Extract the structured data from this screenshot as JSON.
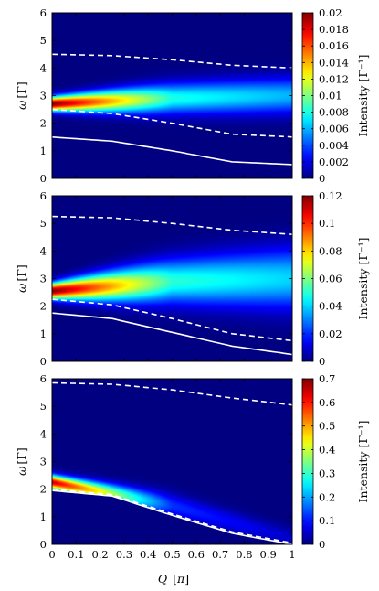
{
  "figure": {
    "xlabel": "Q [π]",
    "xlabel_main": "Q",
    "xlabel_unit": "π"
  },
  "chart_data": [
    {
      "type": "heatmap",
      "xlabel": "Q [π]",
      "ylabel": "ω [Γ]",
      "xlim": [
        0,
        1
      ],
      "ylim": [
        0,
        6
      ],
      "x_ticks": [
        "0",
        "0.1",
        "0.2",
        "0.3",
        "0.4",
        "0.5",
        "0.6",
        "0.7",
        "0.8",
        "0.9",
        "1"
      ],
      "y_ticks": [
        "0",
        "1",
        "2",
        "3",
        "4",
        "5",
        "6"
      ],
      "colorbar": {
        "label": "Intensity [Γ⁻¹]",
        "range": [
          0,
          0.02
        ],
        "ticks": [
          "0",
          "0.002",
          "0.004",
          "0.006",
          "0.008",
          "0.01",
          "0.012",
          "0.014",
          "0.016",
          "0.018",
          "0.02"
        ]
      },
      "colormap": "jet",
      "background_color": "#0000ff",
      "peak_band": {
        "q": [
          0,
          0.5,
          1
        ],
        "center": [
          2.7,
          2.9,
          3.0
        ],
        "width": [
          0.18,
          0.38,
          0.45
        ],
        "intensity": [
          0.02,
          0.008,
          0.006
        ]
      },
      "solid_line": {
        "q": [
          0,
          0.25,
          0.5,
          0.75,
          1
        ],
        "omega": [
          1.5,
          1.35,
          1.0,
          0.6,
          0.5
        ]
      },
      "dashed_lines": [
        {
          "q": [
            0,
            0.25,
            0.5,
            0.75,
            1
          ],
          "omega": [
            4.5,
            4.45,
            4.3,
            4.1,
            4.0
          ]
        },
        {
          "q": [
            0,
            0.25,
            0.5,
            0.75,
            1
          ],
          "omega": [
            2.5,
            2.35,
            2.0,
            1.6,
            1.5
          ]
        }
      ]
    },
    {
      "type": "heatmap",
      "xlabel": "Q [π]",
      "ylabel": "ω [Γ]",
      "xlim": [
        0,
        1
      ],
      "ylim": [
        0,
        6
      ],
      "x_ticks": [
        "0",
        "0.1",
        "0.2",
        "0.3",
        "0.4",
        "0.5",
        "0.6",
        "0.7",
        "0.8",
        "0.9",
        "1"
      ],
      "y_ticks": [
        "0",
        "1",
        "2",
        "3",
        "4",
        "5",
        "6"
      ],
      "colorbar": {
        "label": "Intensity [Γ⁻¹]",
        "range": [
          0,
          0.12
        ],
        "ticks": [
          "0",
          "0.02",
          "0.04",
          "0.06",
          "0.08",
          "0.1",
          "0.12"
        ]
      },
      "colormap": "jet",
      "background_color": "#0000ff",
      "peak_band": {
        "q": [
          0,
          0.5,
          1
        ],
        "center": [
          2.55,
          2.9,
          3.0
        ],
        "width": [
          0.2,
          0.55,
          0.75
        ],
        "intensity": [
          0.12,
          0.05,
          0.04
        ]
      },
      "solid_line": {
        "q": [
          0,
          0.25,
          0.5,
          0.75,
          1
        ],
        "omega": [
          1.75,
          1.55,
          1.05,
          0.55,
          0.25
        ]
      },
      "dashed_lines": [
        {
          "q": [
            0,
            0.25,
            0.5,
            0.75,
            1
          ],
          "omega": [
            5.25,
            5.2,
            5.0,
            4.75,
            4.6
          ]
        },
        {
          "q": [
            0,
            0.25,
            0.5,
            0.75,
            1
          ],
          "omega": [
            2.25,
            2.05,
            1.55,
            1.0,
            0.75
          ]
        }
      ]
    },
    {
      "type": "heatmap",
      "xlabel": "Q [π]",
      "ylabel": "ω [Γ]",
      "xlim": [
        0,
        1
      ],
      "ylim": [
        0,
        6
      ],
      "x_ticks": [
        "0",
        "0.1",
        "0.2",
        "0.3",
        "0.4",
        "0.5",
        "0.6",
        "0.7",
        "0.8",
        "0.9",
        "1"
      ],
      "y_ticks": [
        "0",
        "1",
        "2",
        "3",
        "4",
        "5",
        "6"
      ],
      "colorbar": {
        "label": "Intensity [Γ⁻¹]",
        "range": [
          0,
          0.7
        ],
        "ticks": [
          "0",
          "0.1",
          "0.2",
          "0.3",
          "0.4",
          "0.5",
          "0.6",
          "0.7"
        ]
      },
      "colormap": "jet",
      "background_color": "#0000ff",
      "peak_band": {
        "q": [
          0,
          0.5,
          1
        ],
        "center": [
          2.25,
          1.4,
          0.2
        ],
        "width": [
          0.18,
          0.3,
          0.25
        ],
        "intensity": [
          0.65,
          0.12,
          0.05
        ]
      },
      "solid_line": {
        "q": [
          0,
          0.25,
          0.5,
          0.75,
          1
        ],
        "omega": [
          1.95,
          1.75,
          1.05,
          0.4,
          0.0
        ]
      },
      "dashed_lines": [
        {
          "q": [
            0,
            0.25,
            0.5,
            0.75,
            1
          ],
          "omega": [
            5.85,
            5.8,
            5.6,
            5.3,
            5.05
          ]
        },
        {
          "q": [
            0,
            0.25,
            0.5,
            0.75,
            1
          ],
          "omega": [
            2.0,
            1.8,
            1.1,
            0.45,
            0.05
          ]
        }
      ]
    }
  ]
}
